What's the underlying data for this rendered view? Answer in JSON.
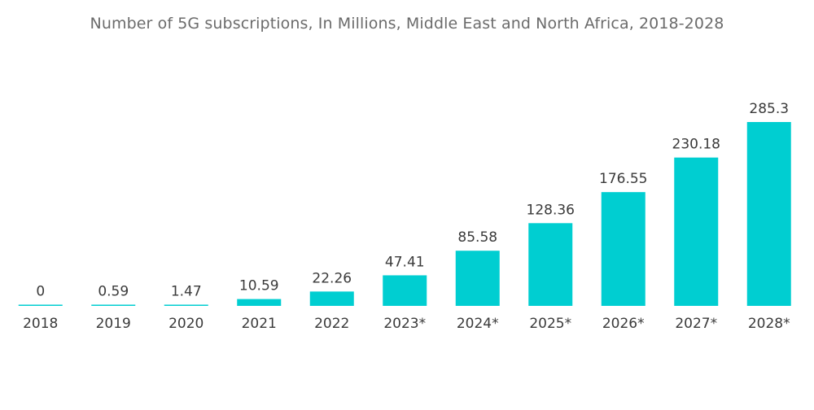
{
  "chart_data": {
    "type": "bar",
    "title": "Number of 5G subscriptions, In Millions, Middle East and North Africa, 2018-2028",
    "categories": [
      "2018",
      "2019",
      "2020",
      "2021",
      "2022",
      "2023*",
      "2024*",
      "2025*",
      "2026*",
      "2027*",
      "2028*"
    ],
    "values": [
      0,
      0.59,
      1.47,
      10.59,
      22.26,
      47.41,
      85.58,
      128.36,
      176.55,
      230.18,
      285.3
    ],
    "value_labels": [
      "0",
      "0.59",
      "1.47",
      "10.59",
      "22.26",
      "47.41",
      "85.58",
      "128.36",
      "176.55",
      "230.18",
      "285.3"
    ],
    "xlabel": "",
    "ylabel": "",
    "ylim": [
      0,
      285.3
    ],
    "grid": false,
    "legend": "none",
    "bar_color": "#00CED1"
  }
}
